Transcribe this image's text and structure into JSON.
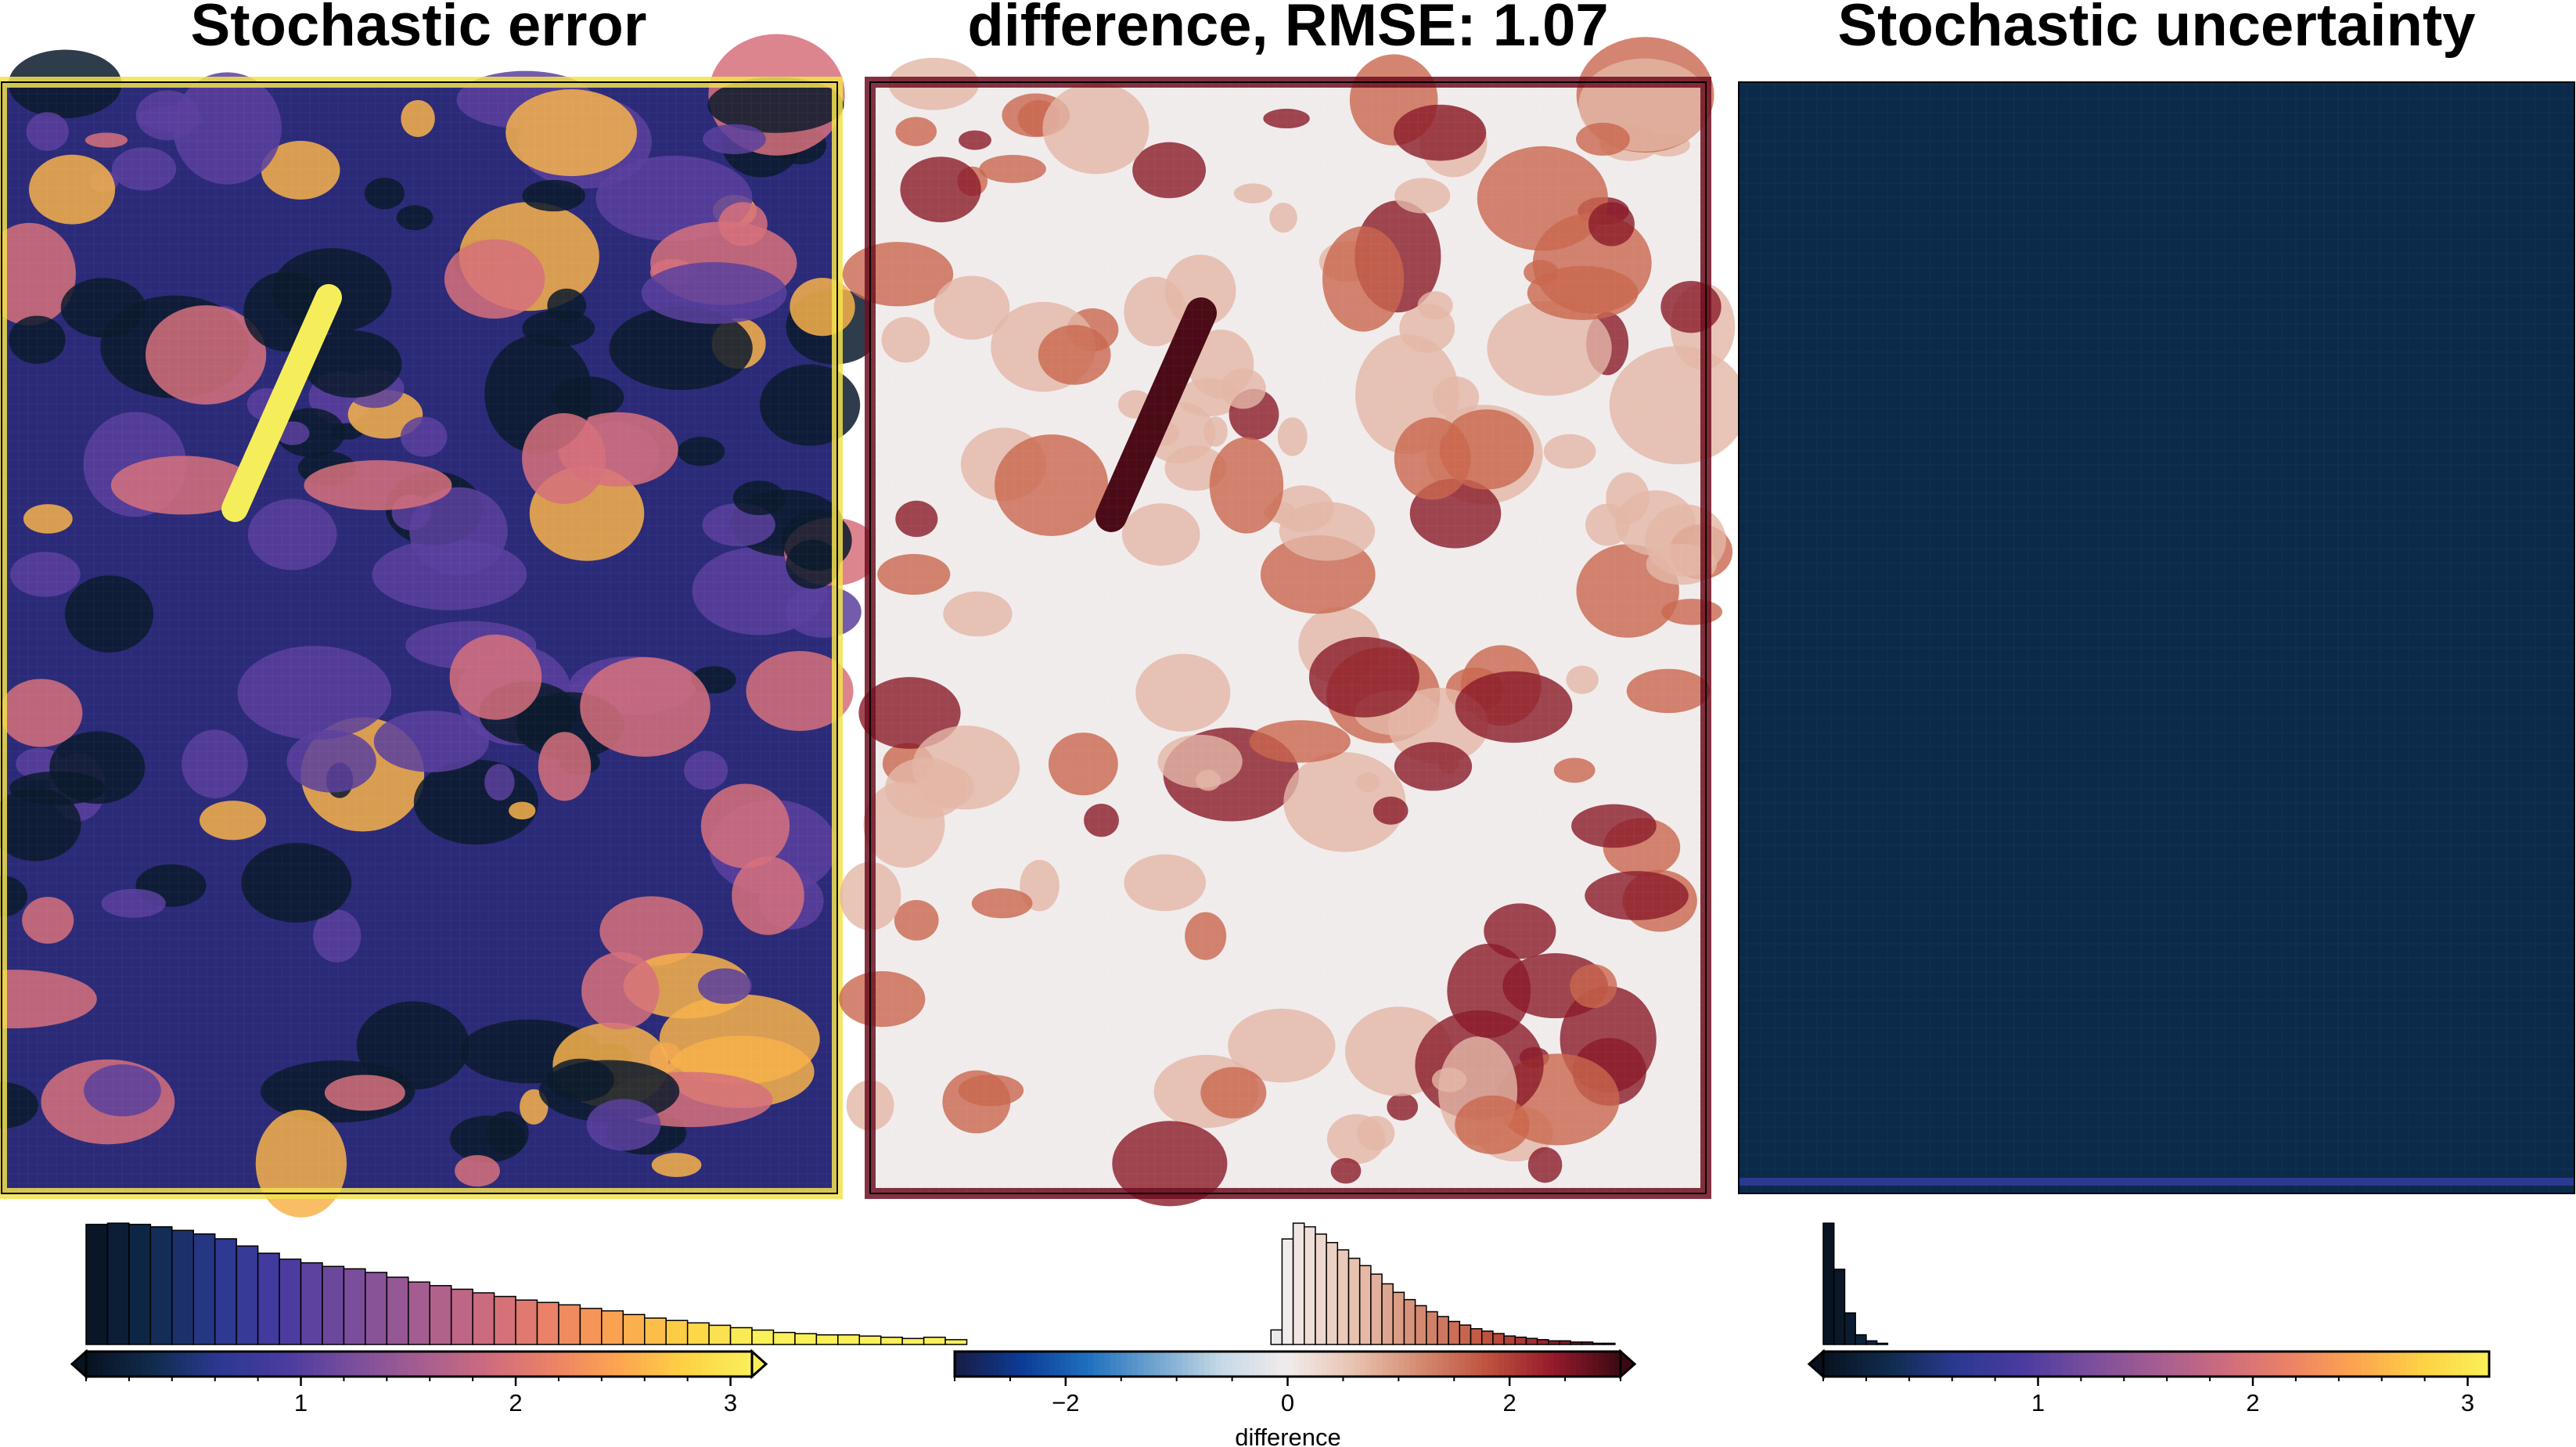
{
  "figure": {
    "layout": "three panels side by side, each map above a histogram colorbar"
  },
  "colors": {
    "thermal": [
      "#08121f",
      "#102b4e",
      "#2b3991",
      "#4a3ba0",
      "#7a4e9c",
      "#a45d91",
      "#cc6b7f",
      "#ec8266",
      "#fca550",
      "#fdd244",
      "#faf05a"
    ],
    "balance": [
      "#181c43",
      "#0c3b95",
      "#1f6fbf",
      "#6fa3cf",
      "#c5d9e6",
      "#f1ecec",
      "#e8c2b0",
      "#d48a70",
      "#bf523f",
      "#941a2b",
      "#3c0912"
    ],
    "uncertainty_fill": "#0b2a4a"
  },
  "panels": [
    {
      "title": "Stochastic error",
      "map_colormap": "thermal",
      "map_range": [
        0,
        3.1
      ]
    },
    {
      "title": "difference, RMSE: 1.07",
      "map_colormap": "balance",
      "map_range": [
        -3,
        3
      ]
    },
    {
      "title": "Stochastic uncertainty",
      "map_colormap": "thermal",
      "map_range": [
        0,
        3.1
      ]
    }
  ],
  "chart_data": [
    {
      "type": "heatmap",
      "title": "Stochastic error",
      "colorbar": {
        "colormap": "thermal",
        "range": [
          0,
          3.1
        ],
        "ticks": [
          1,
          2,
          3
        ],
        "tick_labels": [
          "1",
          "2",
          "3"
        ],
        "extend": "both",
        "label": ""
      },
      "histogram": {
        "bin_start": 0.0,
        "bin_width": 0.1,
        "counts": [
          100,
          101,
          100,
          98,
          95,
          92,
          88,
          82,
          76,
          71,
          68,
          65,
          63,
          60,
          56,
          52,
          49,
          46,
          43,
          40,
          37,
          35,
          33,
          30,
          28,
          25,
          22,
          20,
          18,
          16,
          14,
          12,
          10,
          9,
          8,
          8,
          7,
          6,
          5,
          6,
          4
        ],
        "ymax": 101
      }
    },
    {
      "type": "heatmap",
      "title": "difference, RMSE: 1.07",
      "colorbar": {
        "colormap": "balance",
        "range": [
          -3,
          3
        ],
        "ticks": [
          -2,
          0,
          2
        ],
        "tick_labels": [
          "−2",
          "0",
          "2"
        ],
        "extend": "max",
        "label": "difference"
      },
      "histogram": {
        "bin_start": -0.15,
        "bin_width": 0.1,
        "counts": [
          12,
          87,
          100,
          97,
          91,
          84,
          78,
          71,
          65,
          58,
          50,
          43,
          37,
          32,
          27,
          23,
          19,
          16,
          13,
          11,
          9,
          7,
          6,
          5,
          4,
          3,
          3,
          2,
          2,
          1,
          1
        ],
        "ymax": 100
      }
    },
    {
      "type": "heatmap",
      "title": "Stochastic uncertainty",
      "colorbar": {
        "colormap": "thermal",
        "range": [
          0,
          3.1
        ],
        "ticks": [
          1,
          2,
          3
        ],
        "tick_labels": [
          "1",
          "2",
          "3"
        ],
        "extend": "min",
        "label": ""
      },
      "histogram": {
        "bin_start": 0.0,
        "bin_width": 0.05,
        "counts": [
          100,
          62,
          26,
          8,
          3,
          1
        ],
        "ymax": 100
      }
    }
  ]
}
